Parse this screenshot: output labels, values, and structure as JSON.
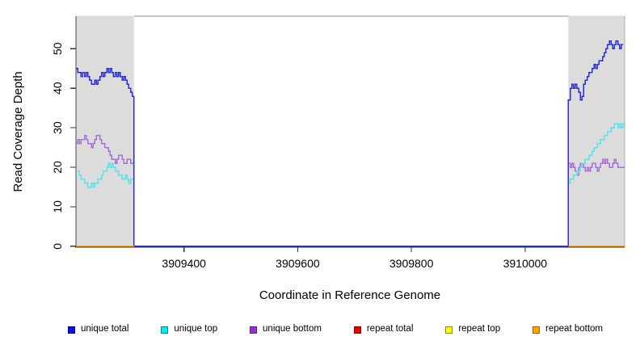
{
  "figure": {
    "background": "#FFFFFF",
    "plot_bg": "#FFFFFF",
    "shaded_region_color": "#DCDCDC",
    "axis_color": "#333333",
    "box_color": "#8C8C8C",
    "side_border_color": "#4A4A4A"
  },
  "chart_data": {
    "type": "line",
    "step": "after",
    "title": "",
    "xlabel": "Coordinate in Reference Genome",
    "ylabel": "Read Coverage Depth",
    "xlim": [
      3909210,
      3910175
    ],
    "ylim": [
      0,
      58
    ],
    "xticks": [
      3909400,
      3909600,
      3909800,
      3910000
    ],
    "yticks": [
      0,
      10,
      20,
      30,
      40,
      50
    ],
    "grid": false,
    "legend_position": "bottom-horizontal",
    "shaded_regions": [
      [
        3909210,
        3909312
      ],
      [
        3910076,
        3910175
      ]
    ],
    "draw_order": [
      2,
      1,
      0,
      3,
      4,
      5
    ],
    "series": [
      {
        "name": "unique total",
        "line_color": "#2B2BD8",
        "legend_fill": "#0E0EE8",
        "legend_border": "#00008B",
        "paths": [
          [
            {
              "x0": 3909210,
              "dx": 3,
              "v": [
                45,
                44,
                44,
                43,
                44,
                43,
                44,
                43,
                42,
                41,
                41,
                42,
                41,
                42,
                43,
                44,
                43,
                44,
                45,
                44,
                45,
                44,
                43,
                44,
                43,
                44,
                43,
                42,
                43,
                42,
                41,
                40,
                39,
                38
              ]
            },
            {
              "x0": 3909312,
              "dx": 764,
              "v": [
                0,
                0
              ]
            },
            {
              "x0": 3910076,
              "dx": 3,
              "v": [
                37,
                40,
                41,
                40,
                41,
                40,
                39,
                37,
                38,
                41,
                42,
                43,
                44,
                44,
                45,
                46,
                45,
                46,
                47,
                47,
                48,
                49,
                50,
                51,
                52,
                51,
                50,
                51,
                52,
                51,
                50,
                51,
                51
              ]
            }
          ]
        ]
      },
      {
        "name": "unique top",
        "line_color": "#55E3EE",
        "legend_fill": "#00EEEE",
        "legend_border": "#008B8B",
        "paths": [
          [
            {
              "x0": 3909210,
              "dx": 3,
              "v": [
                19,
                19,
                18,
                17,
                17,
                16,
                16,
                15,
                15,
                16,
                15,
                16,
                16,
                17,
                17,
                18,
                19,
                19,
                20,
                21,
                20,
                21,
                20,
                19,
                19,
                18,
                18,
                17,
                17,
                18,
                17,
                16,
                17,
                17
              ]
            },
            {
              "x0": 3909312,
              "dx": 764,
              "v": [
                0,
                0
              ]
            },
            {
              "x0": 3910076,
              "dx": 3,
              "v": [
                16,
                17,
                17,
                18,
                18,
                19,
                19,
                20,
                21,
                21,
                22,
                22,
                23,
                23,
                24,
                25,
                25,
                26,
                26,
                27,
                27,
                28,
                28,
                29,
                29,
                30,
                30,
                31,
                31,
                30,
                31,
                30,
                31
              ]
            },
            {
              "x0": 3910175,
              "dx": 1,
              "v": [
                31
              ]
            }
          ]
        ]
      },
      {
        "name": "unique bottom",
        "line_color": "#A76FD8",
        "legend_fill": "#9932CC",
        "legend_border": "#5D1A8B",
        "paths": [
          [
            {
              "x0": 3909210,
              "dx": 3,
              "v": [
                26,
                27,
                26,
                27,
                27,
                28,
                27,
                26,
                26,
                25,
                26,
                27,
                28,
                28,
                27,
                26,
                26,
                25,
                25,
                24,
                23,
                22,
                22,
                21,
                22,
                23,
                23,
                22,
                21,
                21,
                22,
                22,
                21,
                21
              ]
            },
            {
              "x0": 3909312,
              "dx": 764,
              "v": [
                0,
                0
              ]
            },
            {
              "x0": 3910076,
              "dx": 3,
              "v": [
                21,
                20,
                21,
                20,
                19,
                18,
                20,
                21,
                21,
                20,
                19,
                20,
                19,
                20,
                21,
                21,
                20,
                19,
                20,
                21,
                22,
                21,
                22,
                21,
                20,
                20,
                21,
                22,
                21,
                20,
                20,
                20,
                20
              ]
            },
            {
              "x0": 3910175,
              "dx": 1,
              "v": [
                20
              ]
            }
          ]
        ]
      },
      {
        "name": "repeat total",
        "line_color": "#E60000",
        "legend_fill": "#E60000",
        "legend_border": "#8B0000",
        "paths": [
          [
            {
              "x0": 3909210,
              "dx": 102,
              "v": [
                0,
                0
              ]
            }
          ],
          [
            {
              "x0": 3910076,
              "dx": 99,
              "v": [
                0,
                0
              ]
            }
          ]
        ]
      },
      {
        "name": "repeat top",
        "line_color": "#FFFF00",
        "legend_fill": "#FFFF00",
        "legend_border": "#8B8B00",
        "paths": [
          [
            {
              "x0": 3909210,
              "dx": 102,
              "v": [
                0,
                0
              ]
            }
          ],
          [
            {
              "x0": 3910076,
              "dx": 99,
              "v": [
                0,
                0
              ]
            }
          ]
        ]
      },
      {
        "name": "repeat bottom",
        "line_color": "#FFA500",
        "legend_fill": "#FFA500",
        "legend_border": "#B06000",
        "paths": [
          [
            {
              "x0": 3909210,
              "dx": 102,
              "v": [
                0,
                0
              ]
            }
          ],
          [
            {
              "x0": 3910076,
              "dx": 99,
              "v": [
                0,
                0
              ]
            }
          ]
        ]
      }
    ]
  }
}
